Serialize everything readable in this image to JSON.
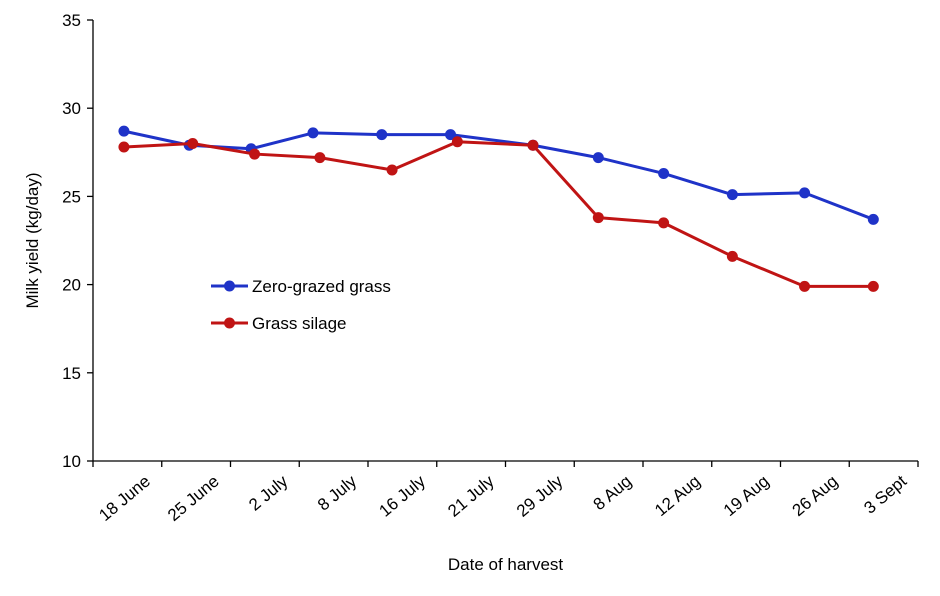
{
  "chart_data": {
    "type": "line",
    "categories": [
      "18 June",
      "25 June",
      "2 July",
      "8 July",
      "16 July",
      "21 July",
      "29 July",
      "8 Aug",
      "12 Aug",
      "19 Aug",
      "26 Aug",
      "3 Sept"
    ],
    "series": [
      {
        "name": "Zero-grazed grass",
        "color": "#1f33c8",
        "x": [
          0.45,
          1.4,
          2.3,
          3.2,
          4.2,
          5.2,
          6.4,
          7.35,
          8.3,
          9.3,
          10.35,
          11.35
        ],
        "values": [
          28.7,
          27.9,
          27.7,
          28.6,
          28.5,
          28.5,
          27.9,
          27.2,
          26.3,
          25.1,
          25.2,
          23.7
        ]
      },
      {
        "name": "Grass silage",
        "color": "#c01414",
        "x": [
          0.45,
          1.45,
          2.35,
          3.3,
          4.35,
          5.3,
          6.4,
          7.35,
          8.3,
          9.3,
          10.35,
          11.35
        ],
        "values": [
          27.8,
          28.0,
          27.4,
          27.2,
          26.5,
          28.1,
          27.9,
          23.8,
          23.5,
          21.6,
          19.9,
          19.9
        ]
      }
    ],
    "xlabel": "Date of harvest",
    "ylabel": "Milk yield (kg/day)",
    "ylim": [
      10,
      35
    ],
    "yticks": [
      "10",
      "15",
      "20",
      "25",
      "30",
      "35"
    ],
    "grid": false,
    "legend_position": "middle-left inside plot"
  }
}
